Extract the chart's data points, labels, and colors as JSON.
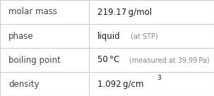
{
  "rows": [
    {
      "label": "molar mass",
      "main_value": "219.17 g/mol",
      "annotation": null
    },
    {
      "label": "phase",
      "main_value": "liquid",
      "annotation": "(at STP)"
    },
    {
      "label": "boiling point",
      "main_value": "50 °C",
      "annotation": "(measured at 39.99 Pa)"
    },
    {
      "label": "density",
      "main_value": "1.092 g/cm",
      "annotation": null,
      "superscript": "3"
    }
  ],
  "col_split": 0.415,
  "background_color": "#ffffff",
  "border_color": "#cccccc",
  "label_color": "#444444",
  "value_color": "#1a1a1a",
  "annotation_color": "#888888",
  "label_fontsize": 8.5,
  "value_fontsize": 8.5,
  "annotation_fontsize": 7.0,
  "superscript_fontsize": 6.5,
  "fig_width": 3.03,
  "fig_height": 1.36,
  "dpi": 100
}
